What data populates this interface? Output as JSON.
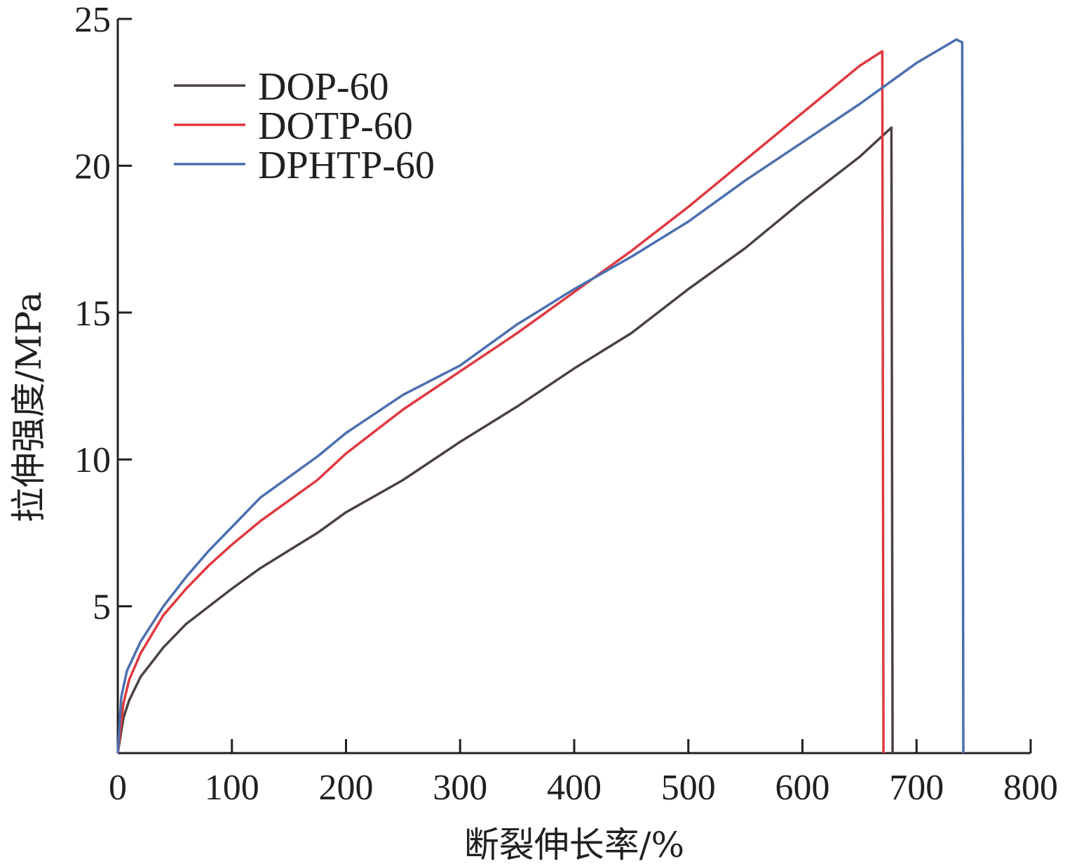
{
  "chart_data": {
    "type": "line",
    "xlabel": "断裂伸长率/%",
    "ylabel": "拉伸强度/MPa",
    "xlim": [
      0,
      800
    ],
    "ylim": [
      0,
      25
    ],
    "x_ticks": [
      0,
      100,
      200,
      300,
      400,
      500,
      600,
      700,
      800
    ],
    "y_ticks": [
      5,
      10,
      15,
      20,
      25
    ],
    "grid": false,
    "legend_position": "top-left",
    "series": [
      {
        "name": "DOP-60",
        "color": "#4a4240",
        "points": [
          [
            0,
            0
          ],
          [
            5,
            1.2
          ],
          [
            10,
            1.8
          ],
          [
            20,
            2.6
          ],
          [
            40,
            3.6
          ],
          [
            60,
            4.4
          ],
          [
            80,
            5.0
          ],
          [
            100,
            5.6
          ],
          [
            125,
            6.3
          ],
          [
            150,
            6.9
          ],
          [
            175,
            7.5
          ],
          [
            200,
            8.2
          ],
          [
            250,
            9.3
          ],
          [
            300,
            10.6
          ],
          [
            350,
            11.8
          ],
          [
            400,
            13.1
          ],
          [
            450,
            14.3
          ],
          [
            500,
            15.8
          ],
          [
            550,
            17.2
          ],
          [
            600,
            18.8
          ],
          [
            650,
            20.3
          ],
          [
            678,
            21.3
          ],
          [
            679,
            0
          ]
        ]
      },
      {
        "name": "DOTP-60",
        "color": "#e0383f",
        "points": [
          [
            0,
            0
          ],
          [
            5,
            1.7
          ],
          [
            10,
            2.5
          ],
          [
            20,
            3.4
          ],
          [
            40,
            4.7
          ],
          [
            60,
            5.6
          ],
          [
            80,
            6.4
          ],
          [
            100,
            7.1
          ],
          [
            125,
            7.9
          ],
          [
            150,
            8.6
          ],
          [
            175,
            9.3
          ],
          [
            200,
            10.2
          ],
          [
            250,
            11.7
          ],
          [
            300,
            13.0
          ],
          [
            350,
            14.3
          ],
          [
            400,
            15.7
          ],
          [
            450,
            17.1
          ],
          [
            500,
            18.6
          ],
          [
            550,
            20.2
          ],
          [
            600,
            21.8
          ],
          [
            650,
            23.4
          ],
          [
            670,
            23.9
          ],
          [
            671,
            0
          ]
        ]
      },
      {
        "name": "DPHTP-60",
        "color": "#4a6fb0",
        "points": [
          [
            0,
            0
          ],
          [
            3,
            1.9
          ],
          [
            8,
            2.8
          ],
          [
            20,
            3.8
          ],
          [
            40,
            5.0
          ],
          [
            60,
            6.0
          ],
          [
            80,
            6.9
          ],
          [
            100,
            7.7
          ],
          [
            125,
            8.7
          ],
          [
            150,
            9.4
          ],
          [
            175,
            10.1
          ],
          [
            200,
            10.9
          ],
          [
            250,
            12.2
          ],
          [
            300,
            13.2
          ],
          [
            350,
            14.6
          ],
          [
            400,
            15.8
          ],
          [
            450,
            16.9
          ],
          [
            500,
            18.1
          ],
          [
            550,
            19.5
          ],
          [
            600,
            20.8
          ],
          [
            650,
            22.1
          ],
          [
            700,
            23.5
          ],
          [
            735,
            24.3
          ],
          [
            740,
            24.2
          ],
          [
            741,
            0
          ]
        ]
      }
    ]
  }
}
